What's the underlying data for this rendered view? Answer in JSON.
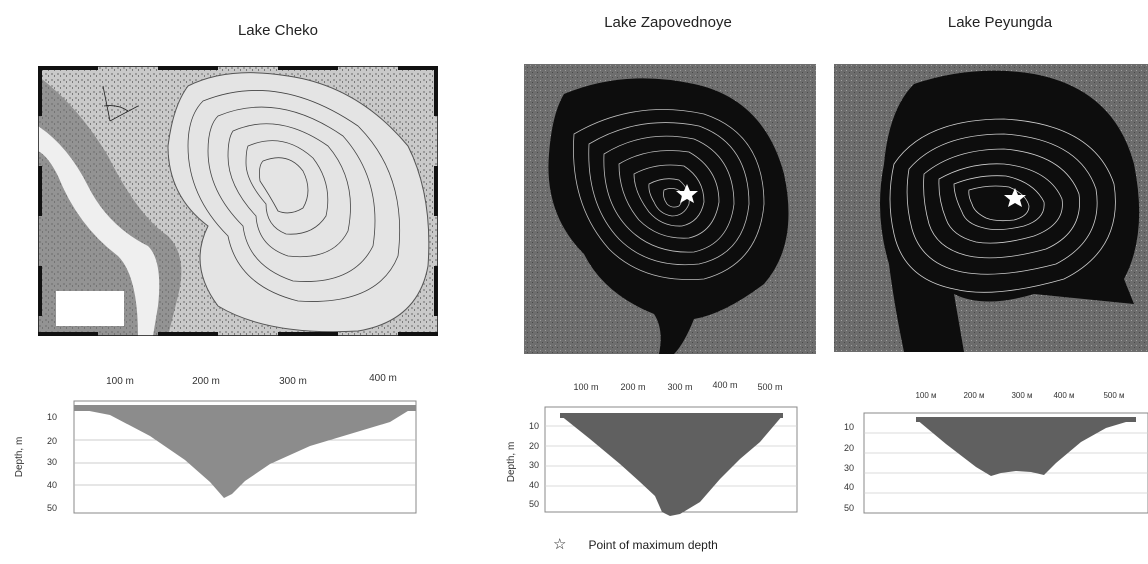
{
  "lakes": [
    {
      "name": "Lake Cheko",
      "profile": {
        "x_ticks": [
          "100 m",
          "200 m",
          "300 m",
          "400 m"
        ],
        "y_ticks": [
          "10",
          "20",
          "30",
          "40",
          "50"
        ],
        "ylabel": "Depth, m",
        "max_depth": 45
      }
    },
    {
      "name": "Lake Zapovednoye",
      "profile": {
        "x_ticks": [
          "100 m",
          "200 m",
          "300 m",
          "400 m",
          "500 m"
        ],
        "y_ticks": [
          "10",
          "20",
          "30",
          "40",
          "50"
        ],
        "ylabel": "Depth, m",
        "max_depth": 56
      }
    },
    {
      "name": "Lake Peyungda",
      "profile": {
        "x_ticks": [
          "100 м",
          "200 м",
          "300 м",
          "400 м",
          "500 м"
        ],
        "y_ticks": [
          "10",
          "20",
          "30",
          "40",
          "50"
        ],
        "ylabel": "",
        "max_depth": 34
      }
    }
  ],
  "legend": {
    "star_icon": "star-outline-icon",
    "label": "Point of maximum depth"
  },
  "colors": {
    "profile_cheko": "#8c8c8c",
    "profile_dark": "#606060",
    "water_dark": "#0d0d0d"
  }
}
